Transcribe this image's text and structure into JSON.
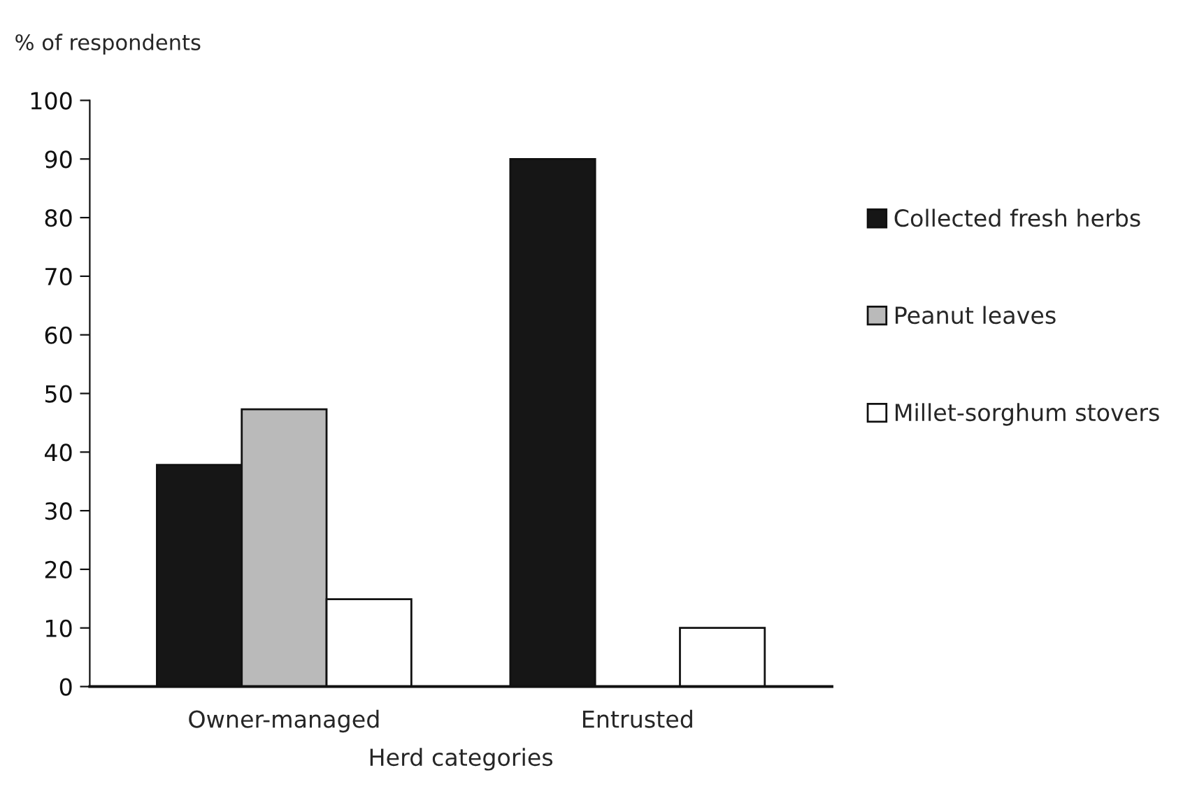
{
  "chart_data": {
    "type": "bar",
    "ylabel": "% of respondents",
    "xlabel": "Herd categories",
    "categories": [
      "Owner-managed",
      "Entrusted"
    ],
    "series": [
      {
        "name": "Collected fresh herbs",
        "color": "#161616",
        "values": [
          37.8,
          90
        ]
      },
      {
        "name": "Peanut leaves",
        "color": "#bababa",
        "values": [
          47.3,
          null
        ]
      },
      {
        "name": "Millet-sorghum stovers",
        "color": "#ffffff",
        "values": [
          14.9,
          10
        ]
      }
    ],
    "ylim": [
      0,
      100
    ],
    "yticks": [
      0,
      10,
      20,
      30,
      40,
      50,
      60,
      70,
      80,
      90,
      100
    ],
    "grid": false,
    "legend": "right"
  }
}
